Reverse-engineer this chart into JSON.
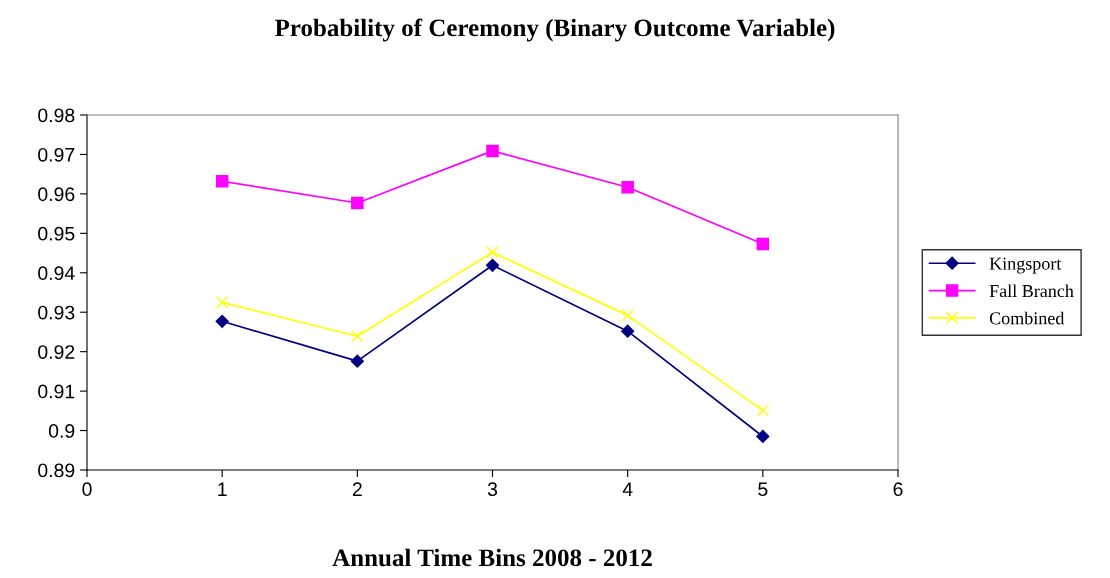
{
  "chart_data": {
    "type": "line",
    "title": "Probability of Ceremony (Binary Outcome Variable)",
    "xlabel": "Annual Time Bins 2008 - 2012",
    "x": [
      1,
      2,
      3,
      4,
      5
    ],
    "series": [
      {
        "name": "Kingsport",
        "color": "#000080",
        "marker": "diamond",
        "values": [
          0.9277,
          0.9176,
          0.9419,
          0.9252,
          0.8985
        ]
      },
      {
        "name": "Fall Branch",
        "color": "#ff00ff",
        "marker": "square",
        "values": [
          0.9632,
          0.9577,
          0.9709,
          0.9617,
          0.9473
        ]
      },
      {
        "name": "Combined",
        "color": "#ffff00",
        "marker": "cross",
        "values": [
          0.9325,
          0.9239,
          0.9452,
          0.9292,
          0.9051
        ]
      }
    ],
    "xlim": [
      0,
      6
    ],
    "xticks": [
      0,
      1,
      2,
      3,
      4,
      5,
      6
    ],
    "ylim": [
      0.89,
      0.98
    ],
    "yticks": [
      {
        "value": 0.89,
        "label": "0.89"
      },
      {
        "value": 0.9,
        "label": "0.9"
      },
      {
        "value": 0.91,
        "label": "0.91"
      },
      {
        "value": 0.92,
        "label": "0.92"
      },
      {
        "value": 0.93,
        "label": "0.93"
      },
      {
        "value": 0.94,
        "label": "0.94"
      },
      {
        "value": 0.95,
        "label": "0.95"
      },
      {
        "value": 0.96,
        "label": "0.96"
      },
      {
        "value": 0.97,
        "label": "0.97"
      },
      {
        "value": 0.98,
        "label": "0.98"
      }
    ],
    "grid": false,
    "legend": "right"
  }
}
